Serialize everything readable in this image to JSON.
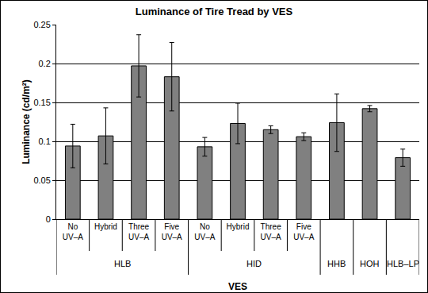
{
  "chart_data": {
    "type": "bar",
    "title": "Luminance of Tire Tread by VES",
    "x_label": "VES",
    "y_label": "Luminance (cd/m²)",
    "categories": [
      "No UV–A",
      "Hybrid",
      "Three UV–A",
      "Five UV–A",
      "No UV–A",
      "Hybrid",
      "Three UV–A",
      "Five UV–A",
      null,
      null,
      null
    ],
    "groups": [
      "HLB",
      "HLB",
      "HLB",
      "HLB",
      "HID",
      "HID",
      "HID",
      "HID",
      "HHB",
      "HOH",
      "HLB–LP"
    ],
    "values": [
      0.094,
      0.107,
      0.197,
      0.183,
      0.093,
      0.123,
      0.115,
      0.106,
      0.124,
      0.142,
      0.079
    ],
    "errors": [
      0.028,
      0.036,
      0.04,
      0.044,
      0.012,
      0.026,
      0.005,
      0.005,
      0.037,
      0.004,
      0.011
    ],
    "color": "#808080",
    "ylim": [
      0,
      0.25
    ],
    "yticks": [
      0,
      0.05,
      0.1,
      0.15,
      0.2,
      0.25
    ],
    "grid": true
  }
}
